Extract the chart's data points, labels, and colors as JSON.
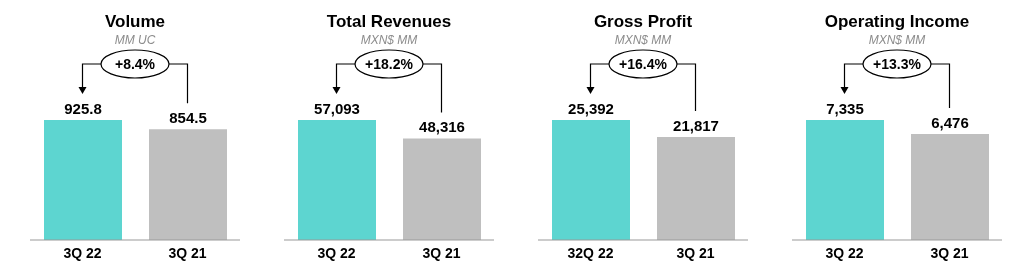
{
  "chart_data": [
    {
      "type": "bar",
      "title": "Volume",
      "subtitle": "MM UC",
      "categories": [
        "3Q 22",
        "3Q 21"
      ],
      "values": [
        925.8,
        854.5
      ],
      "colors": [
        "#5dd5d0",
        "#bfbfbf"
      ],
      "value_labels": [
        "925.8",
        "854.5"
      ],
      "annotations": [
        "+8.4%"
      ]
    },
    {
      "type": "bar",
      "title": "Total Revenues",
      "subtitle": "MXN$ MM",
      "categories": [
        "3Q 22",
        "3Q 21"
      ],
      "values": [
        57093,
        48316
      ],
      "colors": [
        "#5dd5d0",
        "#bfbfbf"
      ],
      "value_labels": [
        "57,093",
        "48,316"
      ],
      "annotations": [
        "+18.2%"
      ]
    },
    {
      "type": "bar",
      "title": "Gross Profit",
      "subtitle": "MXN$ MM",
      "categories": [
        "32Q 22",
        "3Q 21"
      ],
      "values": [
        25392,
        21817
      ],
      "colors": [
        "#5dd5d0",
        "#bfbfbf"
      ],
      "value_labels": [
        "25,392",
        "21,817"
      ],
      "annotations": [
        "+16.4%"
      ]
    },
    {
      "type": "bar",
      "title": "Operating Income",
      "subtitle": "MXN$ MM",
      "categories": [
        "3Q 22",
        "3Q 21"
      ],
      "values": [
        7335,
        6476
      ],
      "colors": [
        "#5dd5d0",
        "#bfbfbf"
      ],
      "value_labels": [
        "7,335",
        "6,476"
      ],
      "annotations": [
        "+13.3%"
      ]
    }
  ]
}
